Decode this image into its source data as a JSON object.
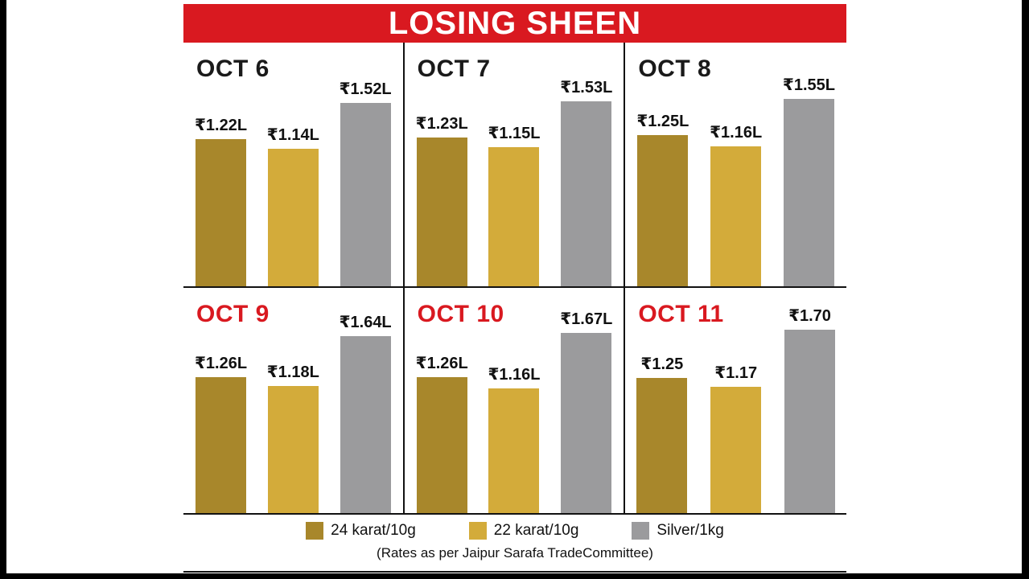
{
  "title": "LOSING SHEEN",
  "colors": {
    "header_bg": "#d91920",
    "header_text": "#ffffff",
    "date_black": "#1a1a1a",
    "date_red": "#d91920",
    "gold24": "#a8872b",
    "gold22": "#d3ab3a",
    "silver": "#9b9b9d"
  },
  "legend": {
    "items": [
      {
        "name": "24 karat/10g",
        "color": "#a8872b"
      },
      {
        "name": "22 karat/10g",
        "color": "#d3ab3a"
      },
      {
        "name": "Silver/1kg",
        "color": "#9b9b9d"
      }
    ],
    "source": "(Rates as per Jaipur Sarafa TradeCommittee)"
  },
  "chart_data": {
    "type": "bar",
    "title": "LOSING SHEEN",
    "series": [
      "24 karat/10g",
      "22 karat/10g",
      "Silver/1kg"
    ],
    "unit": "₹ lakh (L); gold per 10g, silver per 1kg",
    "source": "(Rates as per Jaipur Sarafa TradeCommittee)",
    "panels": [
      {
        "date": "OCT 6",
        "date_style": "black",
        "values": [
          1.22,
          1.14,
          1.52
        ],
        "labels": [
          "₹1.22L",
          "₹1.14L",
          "₹1.52L"
        ]
      },
      {
        "date": "OCT 7",
        "date_style": "black",
        "values": [
          1.23,
          1.15,
          1.53
        ],
        "labels": [
          "₹1.23L",
          "₹1.15L",
          "₹1.53L"
        ]
      },
      {
        "date": "OCT 8",
        "date_style": "black",
        "values": [
          1.25,
          1.16,
          1.55
        ],
        "labels": [
          "₹1.25L",
          "₹1.16L",
          "₹1.55L"
        ]
      },
      {
        "date": "OCT 9",
        "date_style": "red",
        "values": [
          1.26,
          1.18,
          1.64
        ],
        "labels": [
          "₹1.26L",
          "₹1.18L",
          "₹1.64L"
        ]
      },
      {
        "date": "OCT 10",
        "date_style": "red",
        "values": [
          1.26,
          1.16,
          1.67
        ],
        "labels": [
          "₹1.26L",
          "₹1.16L",
          "₹1.67L"
        ]
      },
      {
        "date": "OCT 11",
        "date_style": "red",
        "values": [
          1.25,
          1.17,
          1.7
        ],
        "labels": [
          "₹1.25",
          "₹1.17",
          "₹1.70"
        ]
      }
    ]
  }
}
